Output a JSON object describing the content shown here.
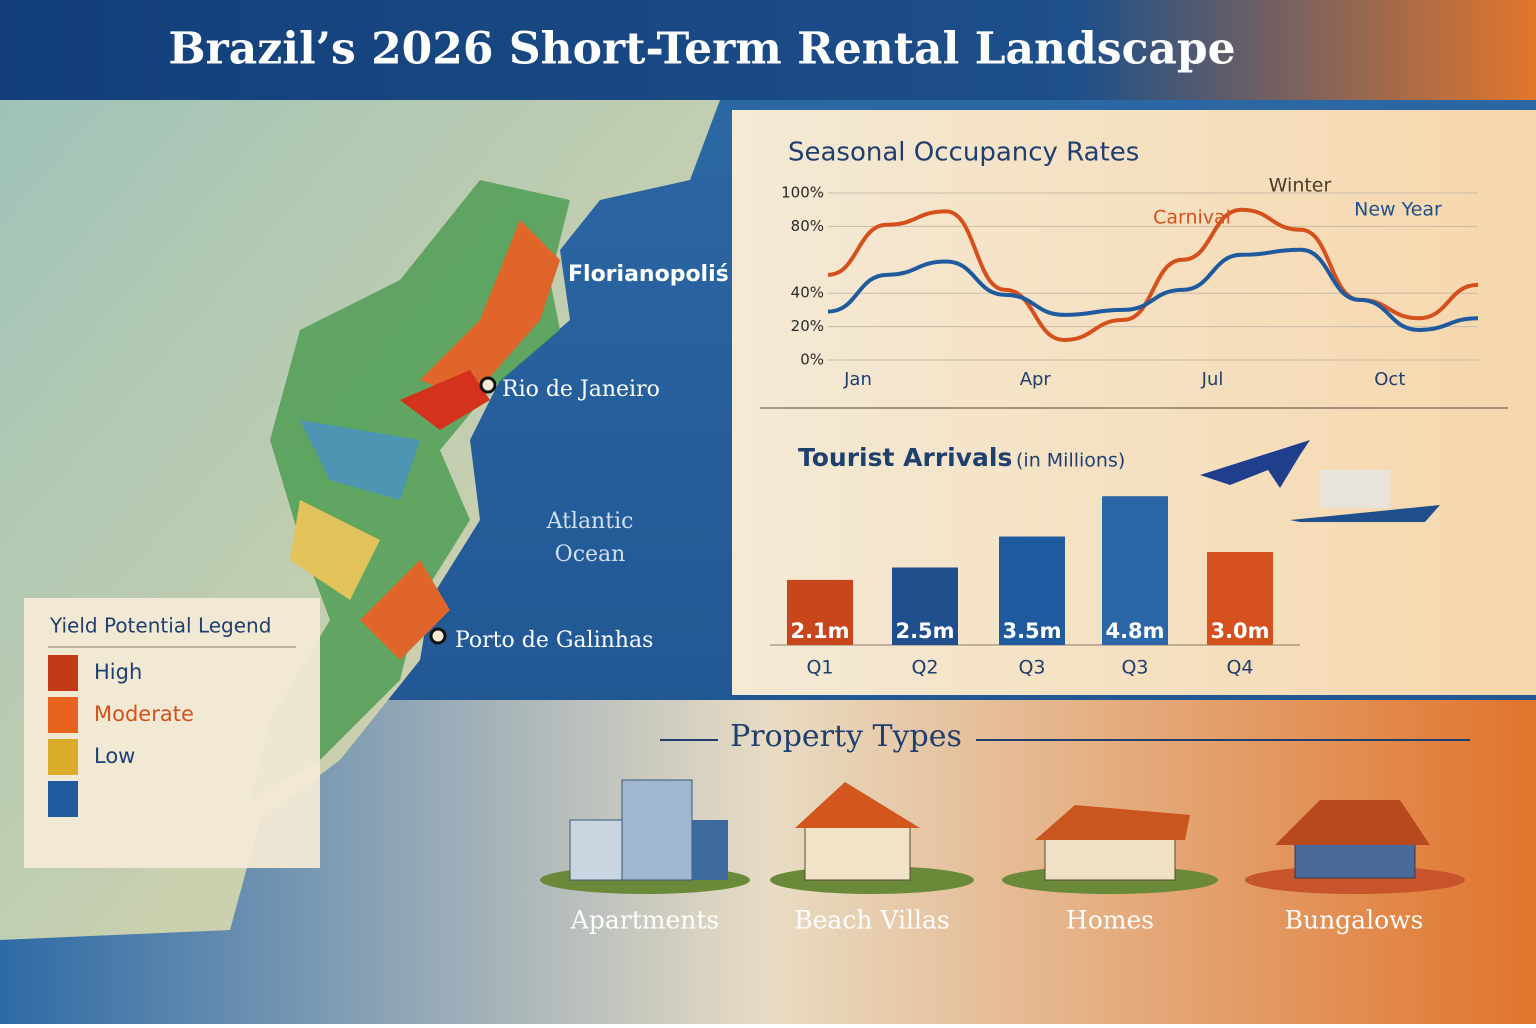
{
  "title": "Brazil’s 2026 Short-Term Rental Landscape",
  "map": {
    "labels": [
      "Florianopoliś",
      "Rio de Janeiro",
      "Porto de Galinhas"
    ],
    "ocean": [
      "Atlantic",
      "Ocean"
    ]
  },
  "legend": {
    "title": "Yield Potential Legend",
    "items": [
      "High",
      "Moderate",
      "Low"
    ]
  },
  "chart_data": [
    {
      "type": "line",
      "title": "Seasonal Occupancy Rates",
      "categories": [
        "Jan",
        null,
        null,
        "Apr",
        null,
        null,
        "Jul",
        null,
        null,
        "Oct",
        null,
        null
      ],
      "series": [
        {
          "color": "#d4501c",
          "values": [
            51,
            81,
            89,
            42,
            12,
            24,
            60,
            90,
            78,
            36,
            25,
            45
          ]
        },
        {
          "color": "#1f5a9e",
          "values": [
            29,
            51,
            59,
            39,
            27,
            30,
            42,
            63,
            66,
            36,
            18,
            25
          ]
        }
      ],
      "ylim": [
        0,
        100
      ],
      "yticks": [
        {
          "value": 0,
          "label": "0%"
        },
        {
          "value": 20,
          "label": "20%"
        },
        {
          "value": 40,
          "label": "40%"
        },
        {
          "value": 80,
          "label": "80%"
        },
        {
          "value": 100,
          "label": "100%"
        }
      ],
      "grid": true,
      "annotations": [
        "Winter",
        "Carnival",
        "New Year"
      ]
    },
    {
      "type": "bar",
      "title": "Tourist Arrivals",
      "subtitle": "(in Millions)",
      "categories": [
        "Q1",
        "Q2",
        "Q3",
        "Q3",
        "Q4"
      ],
      "values": [
        2.1,
        2.5,
        3.5,
        4.8,
        3.0
      ],
      "value_labels": [
        "2.1m",
        "2.5m",
        "3.5m",
        "4.8m",
        "3.0m"
      ],
      "colors": [
        "#c8461c",
        "#1f4f8c",
        "#1f5a9e",
        "#2a66a8",
        "#d4501c"
      ],
      "ylim": [
        0,
        5
      ]
    }
  ],
  "property_types": {
    "title": "Property Types",
    "items": [
      "Apartments",
      "Beach Villas",
      "Homes",
      "Bungalows"
    ]
  }
}
